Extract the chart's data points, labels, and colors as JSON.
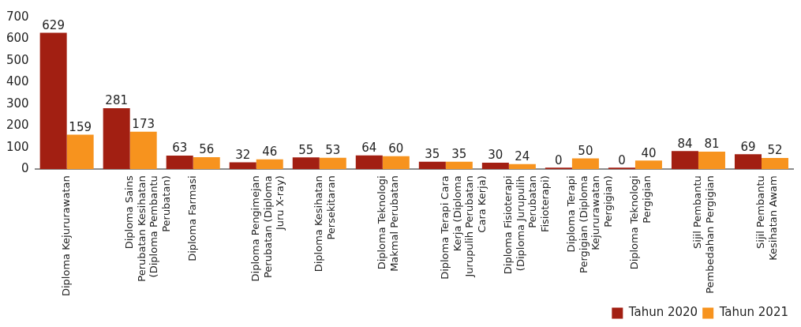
{
  "chart_data": {
    "type": "bar",
    "categories": [
      "Diploma Kejururawatan",
      "Diploma Sains Perubatan Kesihatan (Diploma Pembantu Perubatan)",
      "Diploma Farmasi",
      "Diploma Pengimejan Perubatan (Diploma Juru X-ray)",
      "Diploma Kesihatan Persekitaran",
      "Diploma Teknologi Makmal Perubatan",
      "Diploma Terapi Cara Kerja (Diploma Jurupulih Perubatan Cara Kerja)",
      "Diploma Fisioterapi (Diploma Jurupulih Perubatan Fisioterapi)",
      "Diploma Terapi Pergigian (Diploma Kejururawatan Pergigian)",
      "Diploma Teknologi Pergigian",
      "Sijil Pembantu Pembedahan Pergigian",
      "Sijil Pembantu Kesihatan Awam"
    ],
    "series": [
      {
        "name": "Tahun 2020",
        "color": "#a21f12",
        "values": [
          629,
          281,
          63,
          32,
          55,
          64,
          35,
          30,
          0,
          0,
          84,
          69
        ]
      },
      {
        "name": "Tahun 2021",
        "color": "#f7931e",
        "values": [
          159,
          173,
          56,
          46,
          53,
          60,
          35,
          24,
          50,
          40,
          81,
          52
        ]
      }
    ],
    "ylim": [
      0,
      700
    ],
    "yticks": [
      0,
      100,
      200,
      300,
      400,
      500,
      600,
      700
    ],
    "grid": false,
    "legend": "bottom right",
    "data_labels": true
  }
}
